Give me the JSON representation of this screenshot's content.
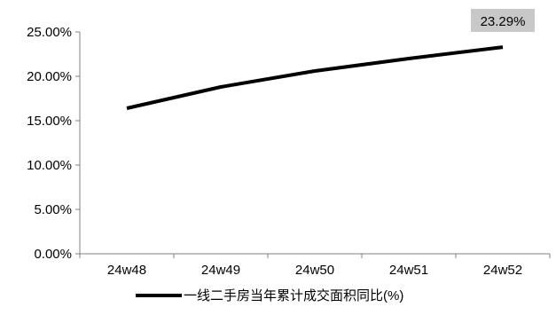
{
  "chart_data": {
    "type": "line",
    "categories": [
      "24w48",
      "24w49",
      "24w50",
      "24w51",
      "24w52"
    ],
    "series": [
      {
        "name": "一线二手房当年累计成交面积同比(%)",
        "values": [
          16.4,
          18.8,
          20.6,
          22.0,
          23.29
        ]
      }
    ],
    "ylim": [
      0,
      25
    ],
    "yticks": [
      0,
      5,
      10,
      15,
      20,
      25
    ],
    "ytick_labels": [
      "0.00%",
      "5.00%",
      "10.00%",
      "15.00%",
      "20.00%",
      "25.00%"
    ],
    "annotation": {
      "text": "23.29%",
      "background": "#c8c8c8"
    },
    "grid": false,
    "legend_position": "bottom",
    "line_color": "#000000"
  }
}
